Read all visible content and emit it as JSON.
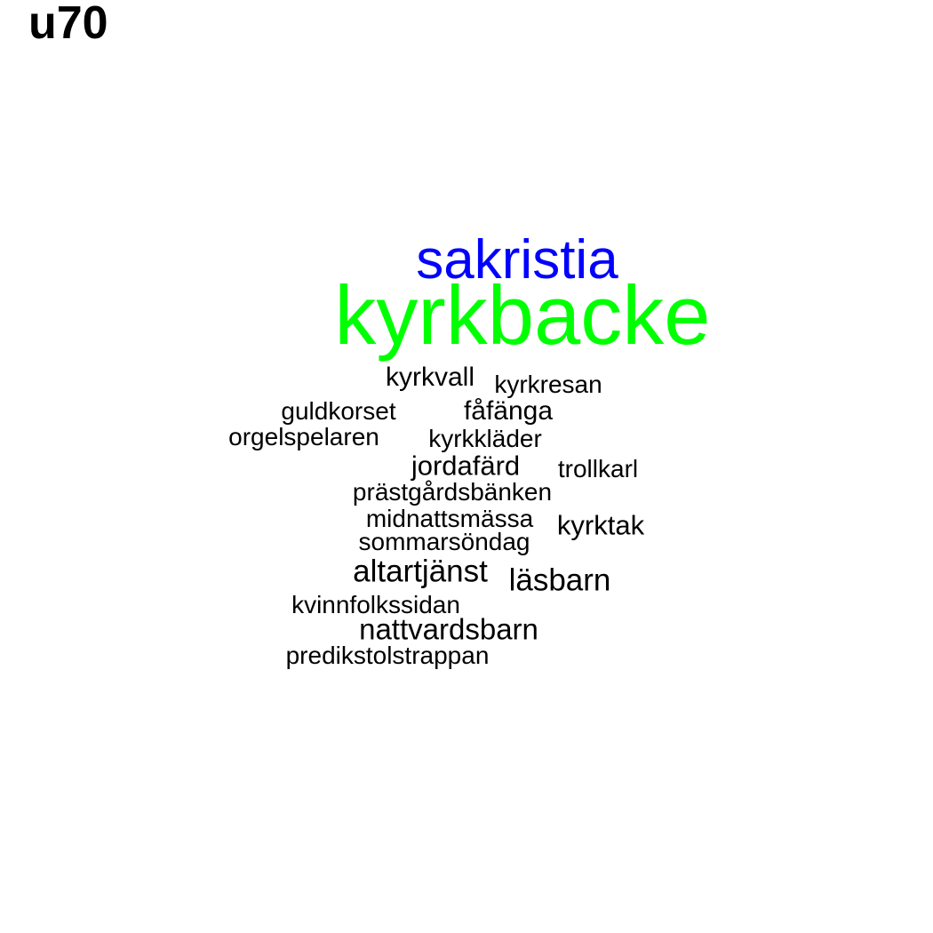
{
  "title": "u70",
  "colors": {
    "primary": "#00ff00",
    "secondary": "#0000ff",
    "default": "#000000"
  },
  "words": [
    {
      "text": "sakristia",
      "color": "#0000ff"
    },
    {
      "text": "kyrkbacke",
      "color": "#00ff00"
    },
    {
      "text": "kyrkvall",
      "color": "#000000"
    },
    {
      "text": "kyrkresan",
      "color": "#000000"
    },
    {
      "text": "guldkorset",
      "color": "#000000"
    },
    {
      "text": "fåfänga",
      "color": "#000000"
    },
    {
      "text": "orgelspelaren",
      "color": "#000000"
    },
    {
      "text": "kyrkkläder",
      "color": "#000000"
    },
    {
      "text": "jordafärd",
      "color": "#000000"
    },
    {
      "text": "trollkarl",
      "color": "#000000"
    },
    {
      "text": "prästgårdsbänken",
      "color": "#000000"
    },
    {
      "text": "midnattsmässa",
      "color": "#000000"
    },
    {
      "text": "kyrktak",
      "color": "#000000"
    },
    {
      "text": "sommarsöndag",
      "color": "#000000"
    },
    {
      "text": "altartjänst",
      "color": "#000000"
    },
    {
      "text": "läsbarn",
      "color": "#000000"
    },
    {
      "text": "kvinnfolkssidan",
      "color": "#000000"
    },
    {
      "text": "nattvardsbarn",
      "color": "#000000"
    },
    {
      "text": "predikstolstrappan",
      "color": "#000000"
    }
  ]
}
